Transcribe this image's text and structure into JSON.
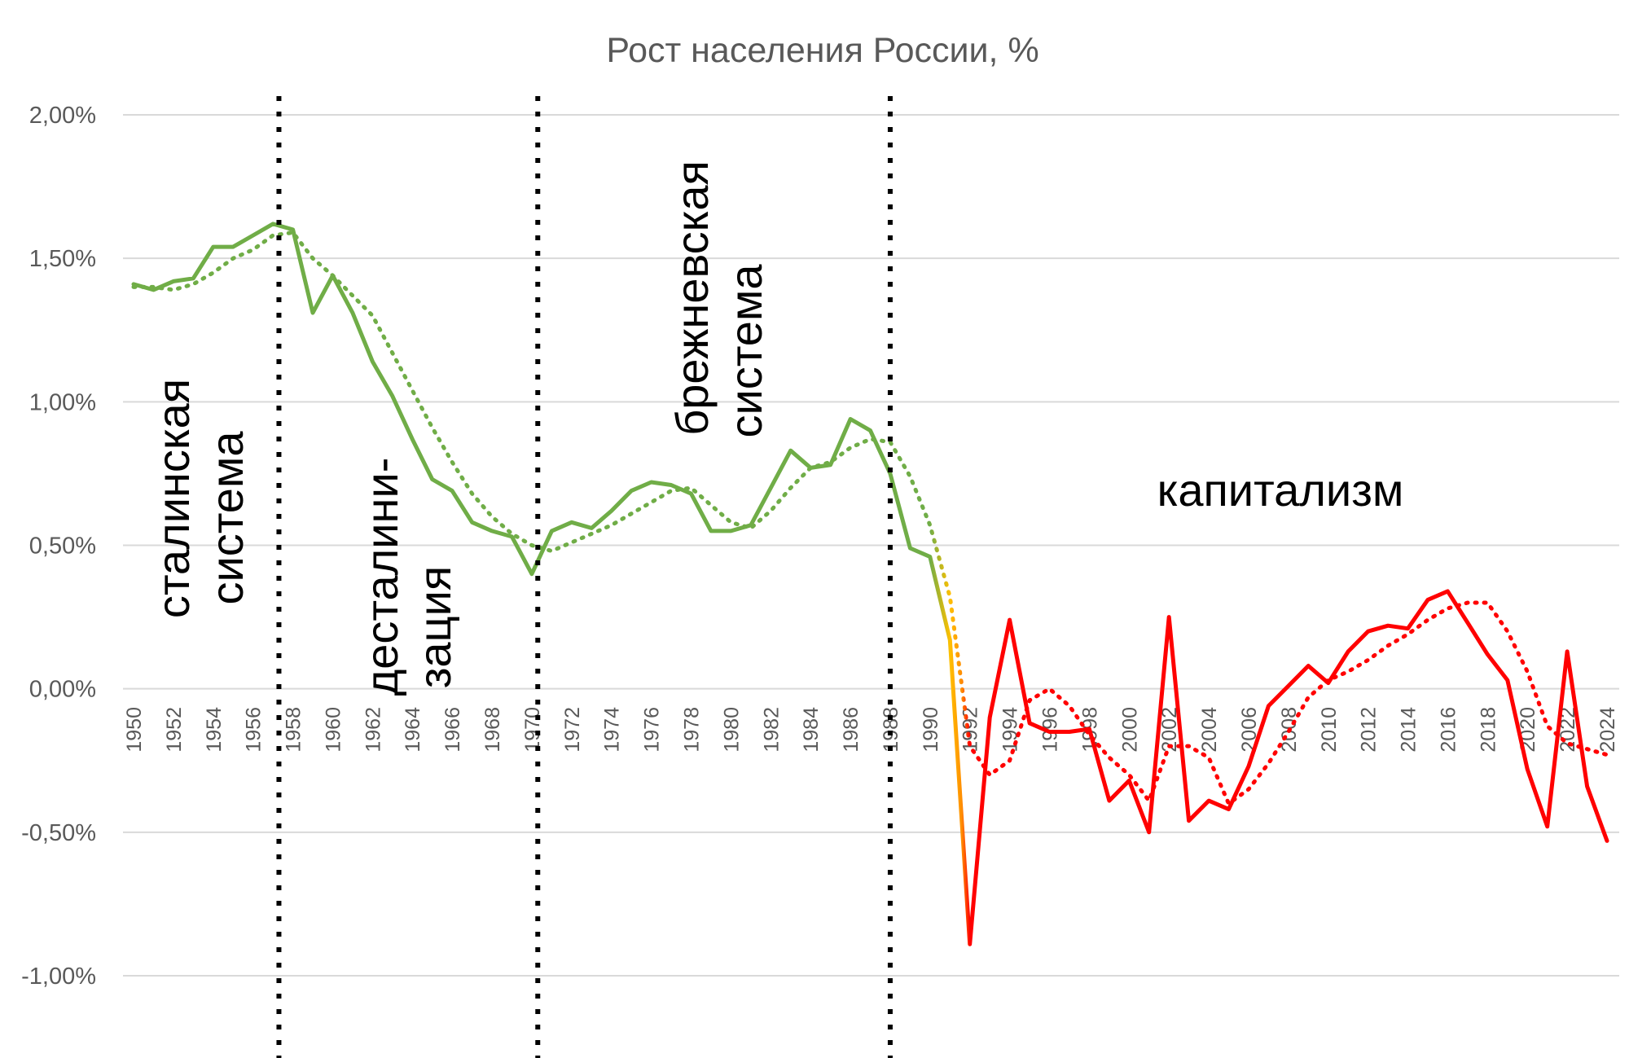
{
  "chart_data": {
    "type": "line",
    "title": "Рост населения России, %",
    "xlabel": "",
    "ylabel": "",
    "ylim": [
      -1.0,
      2.0
    ],
    "xlim": [
      1950,
      2024
    ],
    "yticks": [
      "2,00%",
      "1,50%",
      "1,00%",
      "0,50%",
      "0,00%",
      "-0,50%",
      "-1,00%"
    ],
    "ytick_values": [
      2.0,
      1.5,
      1.0,
      0.5,
      0.0,
      -0.5,
      -1.0
    ],
    "xticks": [
      1950,
      1952,
      1954,
      1956,
      1958,
      1960,
      1962,
      1964,
      1966,
      1968,
      1970,
      1972,
      1974,
      1976,
      1978,
      1980,
      1982,
      1984,
      1986,
      1988,
      1990,
      1992,
      1994,
      1996,
      1998,
      2000,
      2002,
      2004,
      2006,
      2008,
      2010,
      2012,
      2014,
      2016,
      2018,
      2020,
      2022,
      2024
    ],
    "grid": true,
    "legend": "none",
    "series": [
      {
        "style": "solid",
        "x": [
          1950,
          1951,
          1952,
          1953,
          1954,
          1955,
          1956,
          1957,
          1958,
          1959,
          1960,
          1961,
          1962,
          1963,
          1964,
          1965,
          1966,
          1967,
          1968,
          1969,
          1970,
          1971,
          1972,
          1973,
          1974,
          1975,
          1976,
          1977,
          1978,
          1979,
          1980,
          1981,
          1982,
          1983,
          1984,
          1985,
          1986,
          1987,
          1988,
          1989,
          1990,
          1991,
          1992,
          1993,
          1994,
          1995,
          1996,
          1997,
          1998,
          1999,
          2000,
          2001,
          2002,
          2003,
          2004,
          2005,
          2006,
          2007,
          2008,
          2009,
          2010,
          2011,
          2012,
          2013,
          2014,
          2015,
          2016,
          2017,
          2018,
          2019,
          2020,
          2021,
          2022,
          2023,
          2024
        ],
        "y": [
          1.41,
          1.39,
          1.42,
          1.43,
          1.54,
          1.54,
          1.58,
          1.62,
          1.6,
          1.31,
          1.44,
          1.31,
          1.14,
          1.02,
          0.87,
          0.73,
          0.69,
          0.58,
          0.55,
          0.53,
          0.4,
          0.55,
          0.58,
          0.56,
          0.62,
          0.69,
          0.72,
          0.71,
          0.68,
          0.55,
          0.55,
          0.57,
          0.7,
          0.83,
          0.77,
          0.78,
          0.94,
          0.9,
          0.75,
          0.49,
          0.46,
          0.17,
          -0.89,
          -0.1,
          0.24,
          -0.12,
          -0.15,
          -0.15,
          -0.14,
          -0.39,
          -0.32,
          -0.5,
          0.25,
          -0.46,
          -0.39,
          -0.42,
          -0.27,
          -0.06,
          0.01,
          0.08,
          0.02,
          0.13,
          0.2,
          0.22,
          0.21,
          0.31,
          0.34,
          0.23,
          0.12,
          0.03,
          -0.28,
          -0.48,
          0.13,
          -0.34,
          -0.53
        ]
      },
      {
        "style": "dotted",
        "trend": true,
        "x": [
          1950,
          1951,
          1952,
          1953,
          1954,
          1955,
          1956,
          1957,
          1958,
          1959,
          1960,
          1961,
          1962,
          1963,
          1964,
          1965,
          1966,
          1967,
          1968,
          1969,
          1970,
          1971,
          1972,
          1973,
          1974,
          1975,
          1976,
          1977,
          1978,
          1979,
          1980,
          1981,
          1982,
          1983,
          1984,
          1985,
          1986,
          1987,
          1988,
          1989,
          1990,
          1991,
          1992,
          1993,
          1994,
          1995,
          1996,
          1997,
          1998,
          1999,
          2000,
          2001,
          2002,
          2003,
          2004,
          2005,
          2006,
          2007,
          2008,
          2009,
          2010,
          2011,
          2012,
          2013,
          2014,
          2015,
          2016,
          2017,
          2018,
          2019,
          2020,
          2021,
          2022,
          2023,
          2024
        ],
        "y": [
          1.4,
          1.4,
          1.39,
          1.41,
          1.45,
          1.5,
          1.53,
          1.58,
          1.59,
          1.5,
          1.44,
          1.37,
          1.3,
          1.17,
          1.04,
          0.91,
          0.79,
          0.68,
          0.6,
          0.54,
          0.5,
          0.48,
          0.51,
          0.54,
          0.57,
          0.61,
          0.65,
          0.69,
          0.7,
          0.64,
          0.58,
          0.56,
          0.62,
          0.7,
          0.77,
          0.79,
          0.84,
          0.87,
          0.86,
          0.74,
          0.57,
          0.32,
          -0.2,
          -0.3,
          -0.25,
          -0.04,
          0.0,
          -0.06,
          -0.16,
          -0.24,
          -0.3,
          -0.39,
          -0.2,
          -0.2,
          -0.24,
          -0.4,
          -0.35,
          -0.26,
          -0.15,
          -0.03,
          0.03,
          0.06,
          0.1,
          0.15,
          0.19,
          0.24,
          0.28,
          0.3,
          0.3,
          0.2,
          0.06,
          -0.13,
          -0.19,
          -0.21,
          -0.23
        ]
      }
    ],
    "dividers": [
      1957.3,
      1970.3,
      1988.0
    ],
    "eras": [
      {
        "lines": [
          "сталинская",
          "система"
        ]
      },
      {
        "lines": [
          "десталини-",
          "зация"
        ]
      },
      {
        "lines": [
          "брежневская",
          "система"
        ]
      },
      {
        "lines": [
          "капитализм"
        ]
      }
    ],
    "colors": {
      "green": "#70ad47",
      "yellow": "#ffc000",
      "orange": "#ff8c00",
      "red": "#ff0000",
      "grid": "#d9d9d9",
      "tick_text": "#595959"
    }
  }
}
